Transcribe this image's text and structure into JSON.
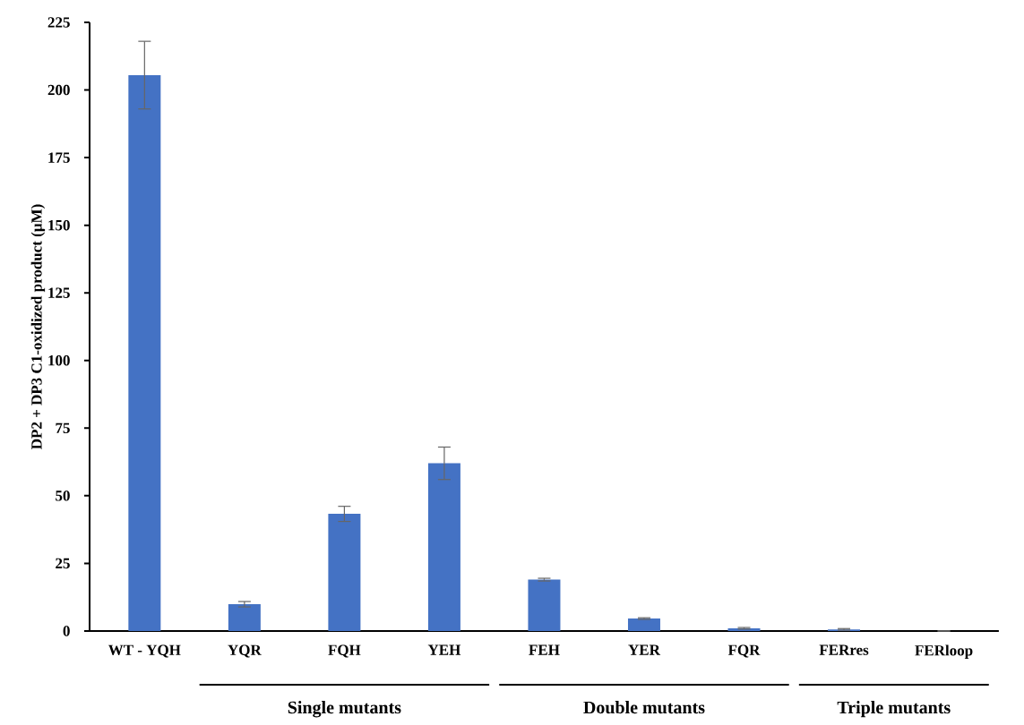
{
  "chart_data": {
    "type": "bar",
    "ylabel": "DP2 + DP3 C1-oxidized product (µM)",
    "categories": [
      "WT - YQH",
      "YQR",
      "FQH",
      "YEH",
      "FEH",
      "YER",
      "FQR",
      "FERres",
      "FERloop"
    ],
    "values": [
      205.5,
      9.9,
      43.3,
      62,
      19,
      4.6,
      1,
      0.6,
      0
    ],
    "errors": [
      12.5,
      1,
      2.8,
      6,
      0.5,
      0.3,
      0.3,
      0.3,
      null
    ],
    "color": "#4472c4",
    "ylim": [
      0,
      225
    ],
    "yticks": [
      0,
      25,
      50,
      75,
      100,
      125,
      150,
      175,
      200,
      225
    ],
    "annotations": [
      "Single mutants",
      "Double mutants",
      "Triple mutants"
    ]
  }
}
